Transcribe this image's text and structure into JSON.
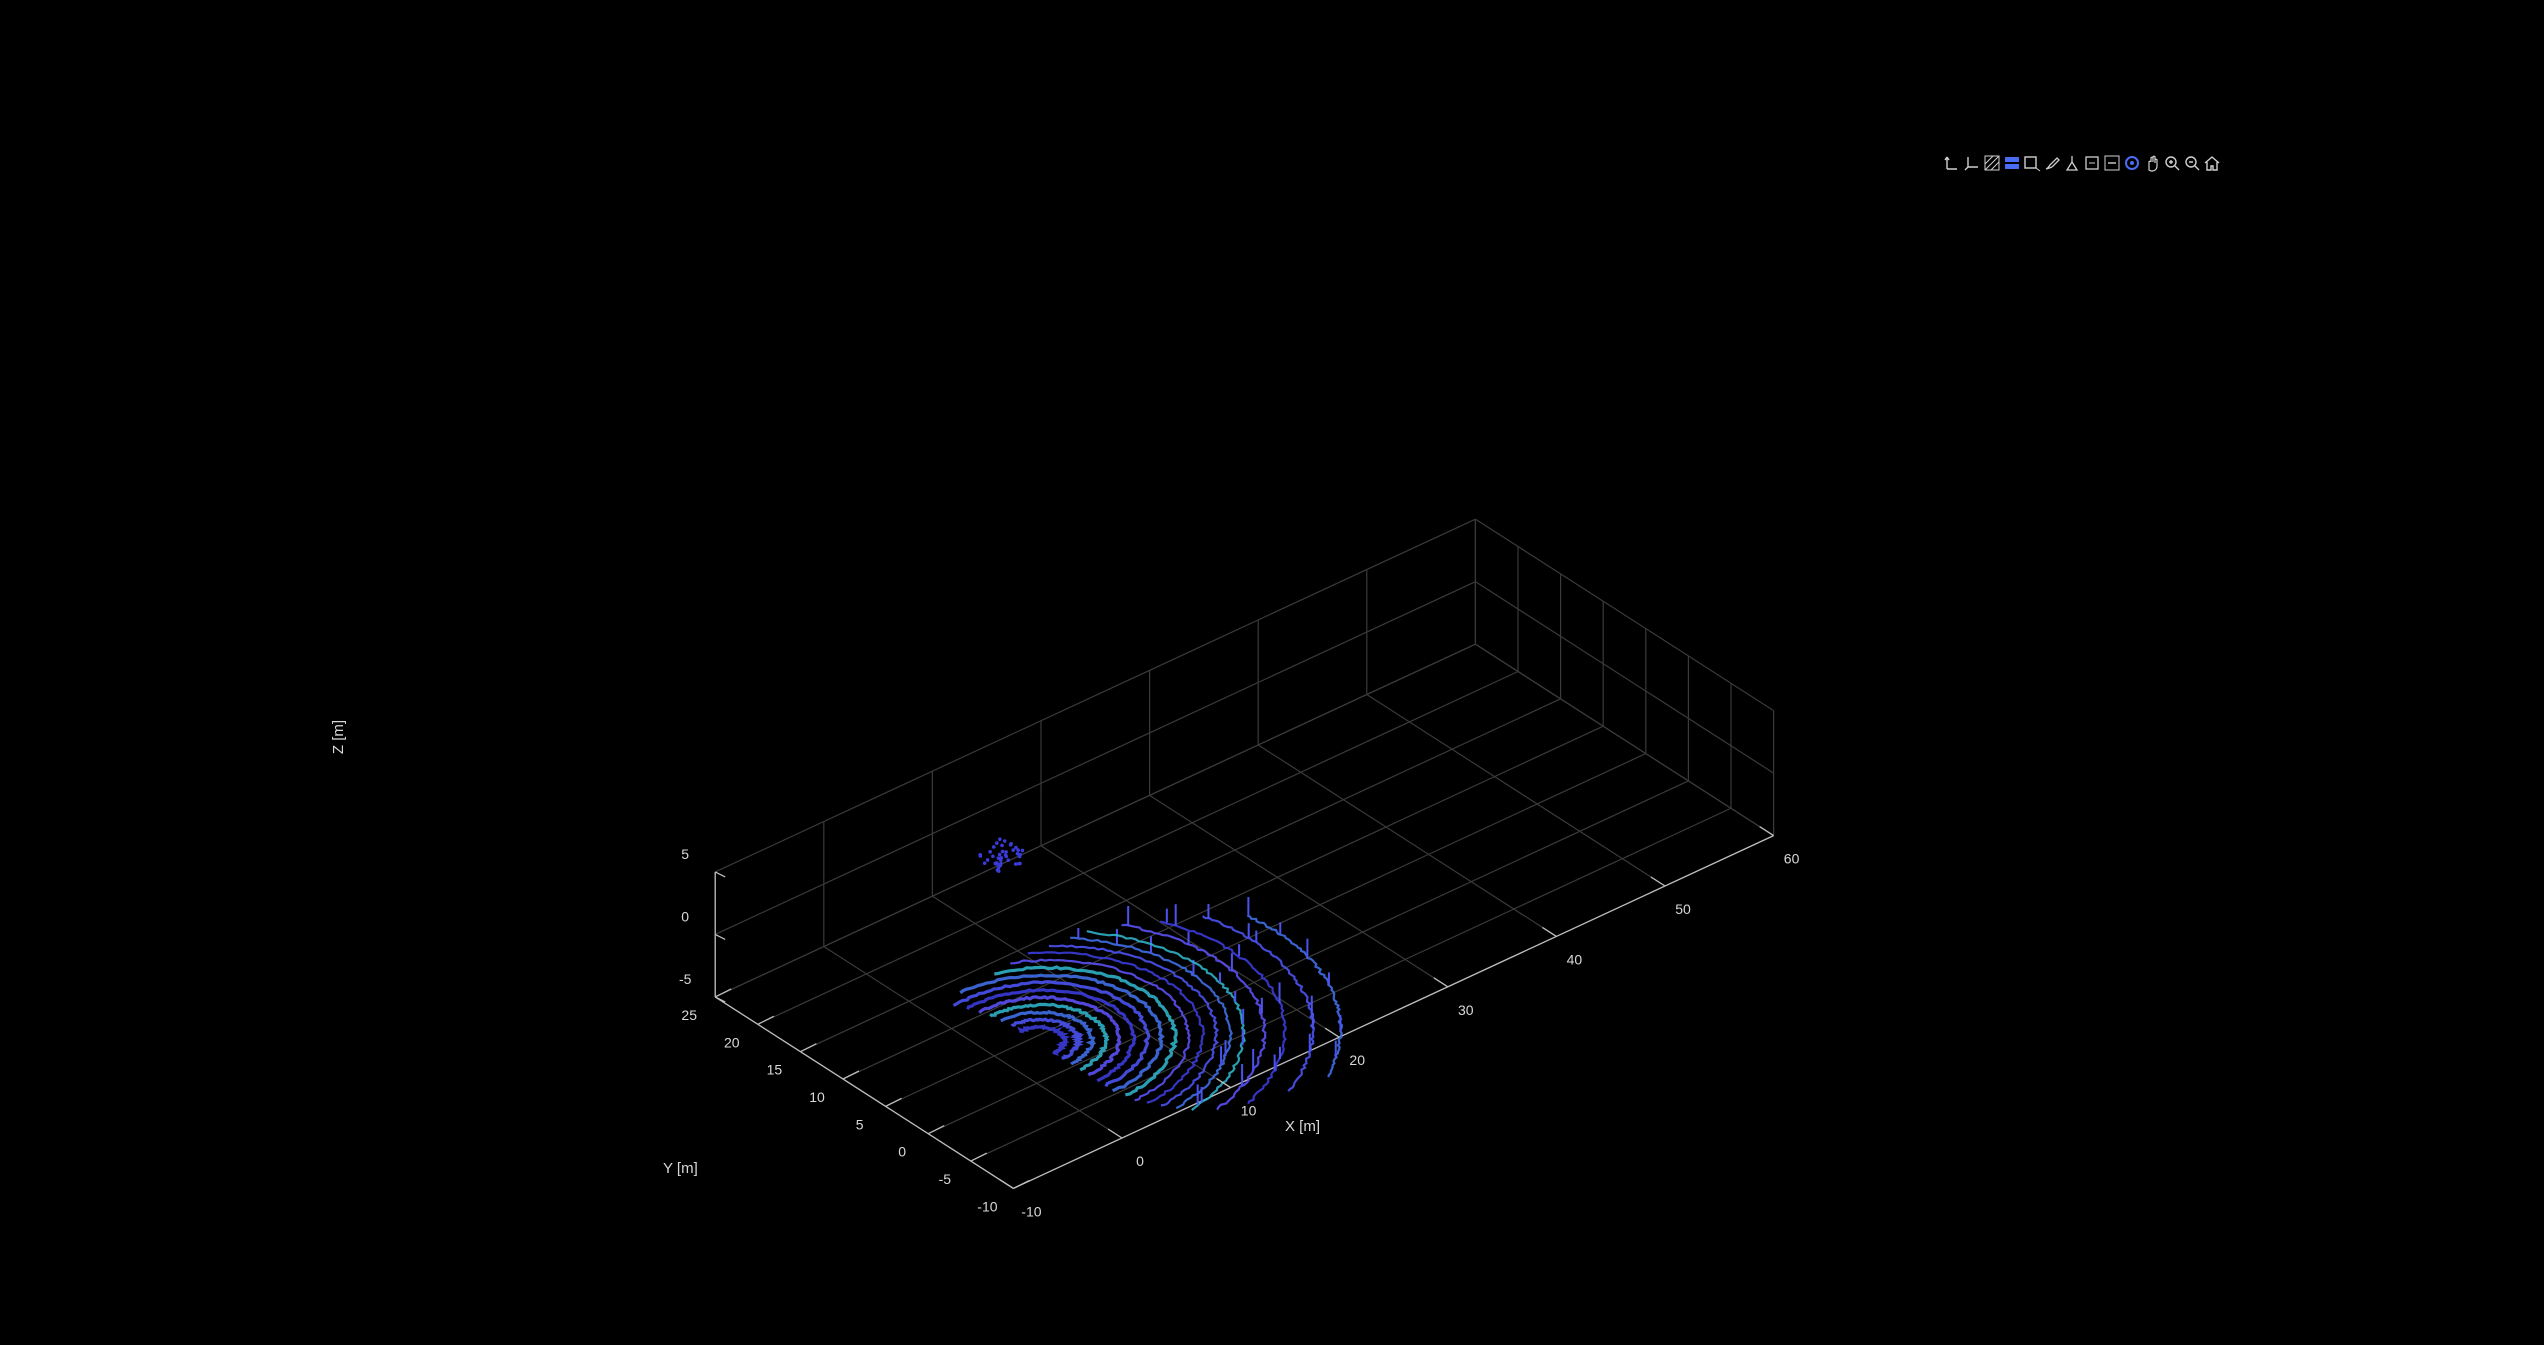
{
  "chart_data": {
    "type": "scatter",
    "subtype": "3d-point-cloud",
    "title": "",
    "xlabel": "X [m]",
    "ylabel": "Y [m]",
    "zlabel": "Z [m]",
    "xlim": [
      -10,
      60
    ],
    "ylim": [
      -10,
      25
    ],
    "zlim": [
      -5,
      5
    ],
    "xticks": [
      "-10",
      "0",
      "10",
      "20",
      "30",
      "40",
      "50",
      "60"
    ],
    "yticks": [
      "-10",
      "-5",
      "0",
      "5",
      "10",
      "15",
      "20",
      "25"
    ],
    "zticks": [
      "-5",
      "0",
      "5"
    ],
    "grid": true,
    "background_color": "#000000",
    "point_colors": [
      "#3b3bd9",
      "#4a52f0",
      "#3f6fe6",
      "#2fb0c8",
      "#5a4ff2"
    ],
    "points_description": "lidar scan rings in ground plane, origin near x=0,y=0",
    "point_cloud": {
      "rings": [
        {
          "radius": 2.0,
          "angle_range": [
            -90,
            90
          ],
          "z": -1.7
        },
        {
          "radius": 3.0,
          "angle_range": [
            -90,
            90
          ],
          "z": -1.7
        },
        {
          "radius": 4.0,
          "angle_range": [
            -90,
            92
          ],
          "z": -1.7
        },
        {
          "radius": 5.0,
          "angle_range": [
            -90,
            94
          ],
          "z": -1.7
        },
        {
          "radius": 6.0,
          "angle_range": [
            -90,
            96
          ],
          "z": -1.7
        },
        {
          "radius": 7.0,
          "angle_range": [
            -90,
            98
          ],
          "z": -1.7
        },
        {
          "radius": 8.0,
          "angle_range": [
            -90,
            100
          ],
          "z": -1.7
        },
        {
          "radius": 9.0,
          "angle_range": [
            -90,
            90
          ],
          "z": -1.7
        },
        {
          "radius": 10.0,
          "angle_range": [
            -88,
            70
          ],
          "z": -1.7
        },
        {
          "radius": 11.0,
          "angle_range": [
            -88,
            62
          ],
          "z": -1.7
        },
        {
          "radius": 12.0,
          "angle_range": [
            -86,
            55
          ],
          "z": -1.7
        },
        {
          "radius": 13.0,
          "angle_range": [
            -84,
            48
          ],
          "z": -1.7
        },
        {
          "radius": 14.0,
          "angle_range": [
            -82,
            42
          ],
          "z": -1.7
        },
        {
          "radius": 15.0,
          "angle_range": [
            -80,
            38
          ],
          "z": -1.7
        },
        {
          "radius": 16.5,
          "angle_range": [
            -76,
            30
          ],
          "z": -1.7
        },
        {
          "radius": 18.0,
          "angle_range": [
            -70,
            22
          ],
          "z": -1.7
        },
        {
          "radius": 20.0,
          "angle_range": [
            -62,
            15
          ],
          "z": -1.7
        },
        {
          "radius": 22.0,
          "angle_range": [
            -55,
            8
          ],
          "z": -1.7
        }
      ],
      "object_cluster": {
        "x": [
          10.5,
          13.5
        ],
        "y": [
          18.5,
          20.5
        ],
        "z": [
          -1.0,
          0.5
        ]
      }
    }
  },
  "toolbar": {
    "buttons": [
      {
        "name": "rotate-axes-icon"
      },
      {
        "name": "view-plane-icon"
      },
      {
        "name": "hatch-icon"
      },
      {
        "name": "ab-text-icon"
      },
      {
        "name": "select-region-icon"
      },
      {
        "name": "brush-icon"
      },
      {
        "name": "lighting-icon"
      },
      {
        "name": "data-tip-icon"
      },
      {
        "name": "restrict-icon"
      },
      {
        "name": "rotate-icon"
      },
      {
        "name": "pan-icon"
      },
      {
        "name": "zoom-in-icon"
      },
      {
        "name": "zoom-out-icon"
      },
      {
        "name": "home-icon"
      }
    ],
    "accent_color": "#4a6cf5",
    "icon_color": "#d0d0d0"
  }
}
